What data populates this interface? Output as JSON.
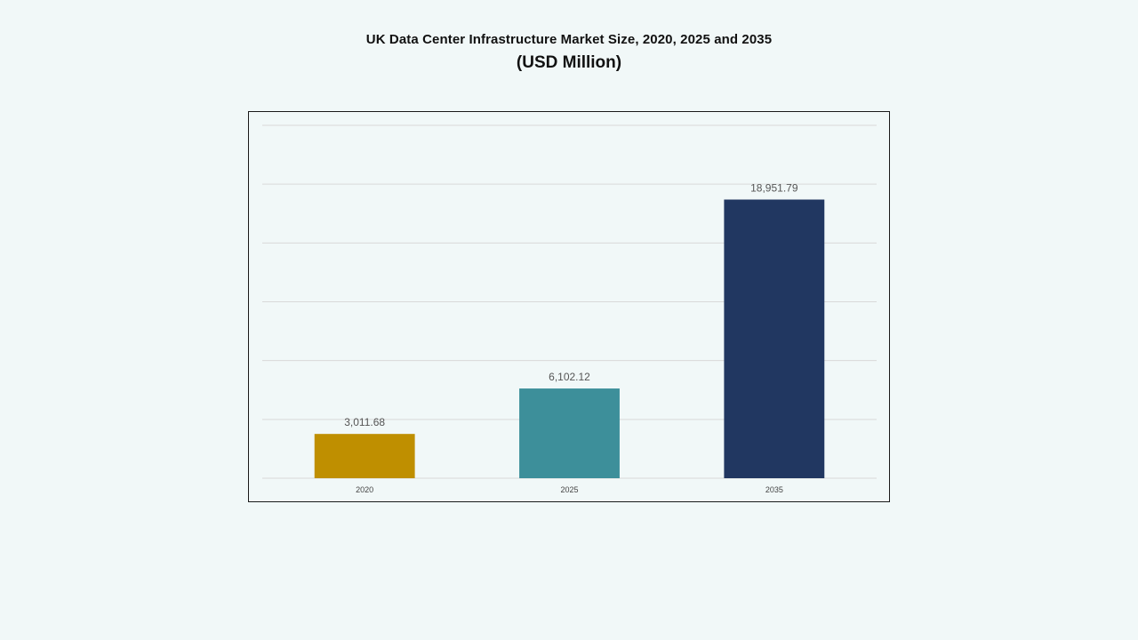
{
  "title": "UK Data Center Infrastructure  Market Size, 2020, 2025 and 2035",
  "subtitle": "(USD Million)",
  "chart_data": {
    "type": "bar",
    "categories": [
      "2020",
      "2025",
      "2035"
    ],
    "values": [
      3011.68,
      6102.12,
      18951.79
    ],
    "value_labels": [
      "3,011.68",
      "6,102.12",
      "18,951.79"
    ],
    "colors": [
      "#bf8f00",
      "#3d8f9a",
      "#213761"
    ],
    "ylim": [
      0,
      24000
    ],
    "grid": true,
    "gridline_color": "#d9d9d9",
    "legend": "none",
    "xlabel": "",
    "ylabel": ""
  }
}
